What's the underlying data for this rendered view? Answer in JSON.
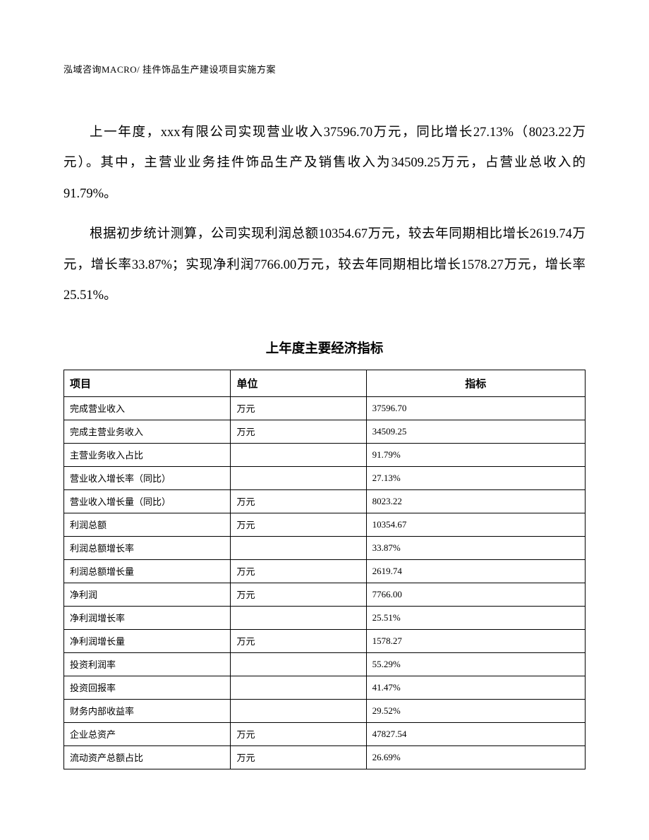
{
  "header": "泓域咨询MACRO/ 挂件饰品生产建设项目实施方案",
  "paragraph1": "上一年度，xxx有限公司实现营业收入37596.70万元，同比增长27.13%（8023.22万元）。其中，主营业业务挂件饰品生产及销售收入为34509.25万元，占营业总收入的91.79%。",
  "paragraph2": "根据初步统计测算，公司实现利润总额10354.67万元，较去年同期相比增长2619.74万元，增长率33.87%；实现净利润7766.00万元，较去年同期相比增长1578.27万元，增长率25.51%。",
  "table": {
    "title": "上年度主要经济指标",
    "columns": {
      "item": "项目",
      "unit": "单位",
      "indicator": "指标"
    },
    "col_widths_pct": [
      32,
      26,
      42
    ],
    "header_fontsize": 15,
    "body_fontsize": 13,
    "border_color": "#000000",
    "background": "#ffffff",
    "rows": [
      {
        "item": "完成营业收入",
        "unit": "万元",
        "indicator": "37596.70"
      },
      {
        "item": "完成主营业务收入",
        "unit": "万元",
        "indicator": "34509.25"
      },
      {
        "item": "主营业务收入占比",
        "unit": "",
        "indicator": "91.79%"
      },
      {
        "item": "营业收入增长率（同比）",
        "unit": "",
        "indicator": "27.13%"
      },
      {
        "item": "营业收入增长量（同比）",
        "unit": "万元",
        "indicator": "8023.22"
      },
      {
        "item": "利润总额",
        "unit": "万元",
        "indicator": "10354.67"
      },
      {
        "item": "利润总额增长率",
        "unit": "",
        "indicator": "33.87%"
      },
      {
        "item": "利润总额增长量",
        "unit": "万元",
        "indicator": "2619.74"
      },
      {
        "item": "净利润",
        "unit": "万元",
        "indicator": "7766.00"
      },
      {
        "item": "净利润增长率",
        "unit": "",
        "indicator": "25.51%"
      },
      {
        "item": "净利润增长量",
        "unit": "万元",
        "indicator": "1578.27"
      },
      {
        "item": "投资利润率",
        "unit": "",
        "indicator": "55.29%"
      },
      {
        "item": "投资回报率",
        "unit": "",
        "indicator": "41.47%"
      },
      {
        "item": "财务内部收益率",
        "unit": "",
        "indicator": "29.52%"
      },
      {
        "item": "企业总资产",
        "unit": "万元",
        "indicator": "47827.54"
      },
      {
        "item": "流动资产总额占比",
        "unit": "万元",
        "indicator": "26.69%"
      }
    ]
  }
}
